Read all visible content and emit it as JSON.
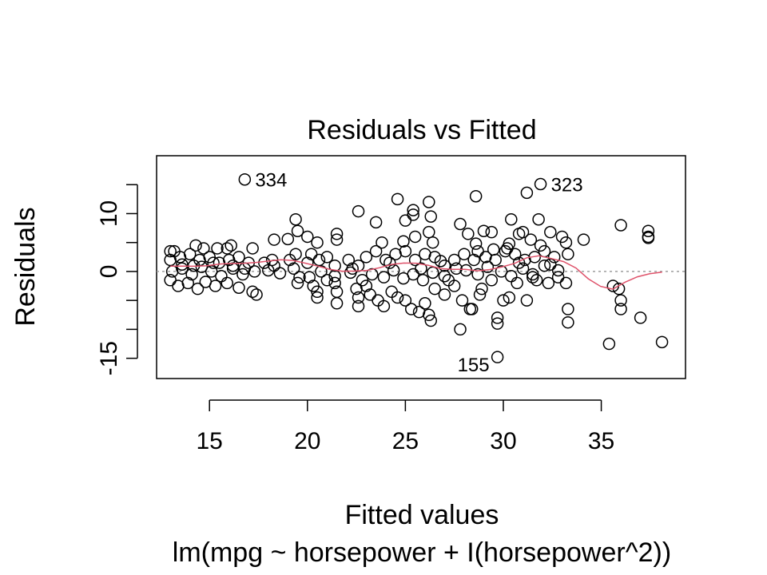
{
  "chart_data": {
    "type": "scatter",
    "title": "Residuals vs Fitted",
    "xlabel": "Fitted values",
    "sublabel": "lm(mpg ~ horsepower + I(horsepower^2))",
    "ylabel": "Residuals",
    "xlim": [
      12.3,
      39.3
    ],
    "ylim": [
      -18.5,
      20
    ],
    "xticks": [
      15,
      20,
      25,
      30,
      35
    ],
    "yticks": [
      -15,
      -10,
      -5,
      0,
      5,
      10,
      15
    ],
    "ytick_labels": [
      "-15",
      "",
      "",
      "0",
      "",
      "10",
      ""
    ],
    "grid": false,
    "reference_line": {
      "y": 0,
      "style": "dotted",
      "color": "#9e9e9e"
    },
    "smooth_color": "#df536b",
    "labeled_points": [
      {
        "label": "334",
        "x": 16.8,
        "y": 15.9
      },
      {
        "label": "323",
        "x": 31.9,
        "y": 15.1
      },
      {
        "label": "155",
        "x": 29.7,
        "y": -14.8
      }
    ],
    "points": [
      [
        16.8,
        15.9
      ],
      [
        31.9,
        15.1
      ],
      [
        29.7,
        -14.8
      ],
      [
        31.2,
        13.6
      ],
      [
        28.6,
        13.0
      ],
      [
        24.6,
        12.5
      ],
      [
        26.2,
        12.0
      ],
      [
        22.6,
        10.4
      ],
      [
        25.4,
        10.6
      ],
      [
        25.4,
        9.8
      ],
      [
        26.3,
        9.5
      ],
      [
        30.4,
        9.0
      ],
      [
        31.8,
        9.0
      ],
      [
        25.0,
        8.8
      ],
      [
        23.5,
        8.5
      ],
      [
        27.8,
        8.2
      ],
      [
        19.4,
        9.0
      ],
      [
        19.5,
        7.0
      ],
      [
        36.0,
        8.0
      ],
      [
        37.4,
        7.0
      ],
      [
        37.4,
        6.0
      ],
      [
        37.4,
        5.8
      ],
      [
        28.2,
        6.5
      ],
      [
        29.0,
        7.0
      ],
      [
        29.4,
        6.8
      ],
      [
        30.8,
        6.5
      ],
      [
        32.4,
        6.8
      ],
      [
        33.0,
        6.0
      ],
      [
        21.5,
        6.5
      ],
      [
        21.5,
        5.5
      ],
      [
        18.3,
        5.5
      ],
      [
        19.0,
        5.6
      ],
      [
        20.0,
        6.0
      ],
      [
        20.5,
        5.0
      ],
      [
        23.8,
        5.0
      ],
      [
        24.9,
        5.2
      ],
      [
        26.4,
        5.0
      ],
      [
        28.6,
        4.8
      ],
      [
        30.3,
        4.8
      ],
      [
        31.9,
        4.5
      ],
      [
        34.1,
        5.5
      ],
      [
        33.2,
        5.0
      ],
      [
        13.0,
        3.5
      ],
      [
        13.2,
        3.5
      ],
      [
        14.3,
        4.5
      ],
      [
        14.7,
        4.0
      ],
      [
        15.4,
        4.0
      ],
      [
        15.9,
        4.0
      ],
      [
        16.1,
        4.5
      ],
      [
        17.2,
        4.0
      ],
      [
        13.0,
        2.0
      ],
      [
        13.5,
        2.5
      ],
      [
        14.0,
        3.0
      ],
      [
        14.5,
        2.0
      ],
      [
        15.0,
        2.5
      ],
      [
        15.5,
        1.5
      ],
      [
        16.0,
        2.0
      ],
      [
        16.5,
        2.5
      ],
      [
        17.0,
        1.5
      ],
      [
        17.8,
        1.5
      ],
      [
        18.3,
        1.0
      ],
      [
        19.1,
        2.0
      ],
      [
        20.0,
        1.5
      ],
      [
        20.6,
        2.0
      ],
      [
        21.0,
        2.5
      ],
      [
        21.4,
        1.0
      ],
      [
        22.1,
        2.0
      ],
      [
        22.6,
        1.0
      ],
      [
        23.0,
        2.5
      ],
      [
        23.5,
        3.5
      ],
      [
        24.0,
        2.0
      ],
      [
        24.5,
        3.0
      ],
      [
        25.0,
        3.5
      ],
      [
        25.5,
        2.0
      ],
      [
        26.0,
        3.0
      ],
      [
        26.5,
        2.5
      ],
      [
        27.0,
        1.0
      ],
      [
        27.5,
        2.0
      ],
      [
        28.0,
        3.0
      ],
      [
        28.7,
        3.5
      ],
      [
        29.1,
        2.5
      ],
      [
        29.6,
        2.0
      ],
      [
        30.1,
        3.5
      ],
      [
        30.6,
        3.0
      ],
      [
        31.1,
        2.0
      ],
      [
        31.6,
        2.5
      ],
      [
        32.1,
        3.5
      ],
      [
        32.6,
        2.5
      ],
      [
        33.3,
        3.0
      ],
      [
        13.1,
        0.0
      ],
      [
        13.6,
        0.5
      ],
      [
        14.1,
        -0.5
      ],
      [
        14.6,
        0.8
      ],
      [
        15.1,
        0.0
      ],
      [
        15.6,
        -0.8
      ],
      [
        16.2,
        0.5
      ],
      [
        16.7,
        -0.5
      ],
      [
        17.3,
        0.0
      ],
      [
        18.0,
        0.2
      ],
      [
        18.6,
        -0.3
      ],
      [
        19.3,
        0.5
      ],
      [
        20.1,
        -1.0
      ],
      [
        20.7,
        0.0
      ],
      [
        21.4,
        -0.8
      ],
      [
        22.2,
        -0.2
      ],
      [
        22.8,
        -1.5
      ],
      [
        23.3,
        -0.5
      ],
      [
        23.9,
        -1.0
      ],
      [
        24.4,
        0.2
      ],
      [
        24.9,
        -1.2
      ],
      [
        25.4,
        -0.5
      ],
      [
        25.9,
        -1.5
      ],
      [
        26.4,
        -0.2
      ],
      [
        27.0,
        -0.8
      ],
      [
        27.6,
        0.5
      ],
      [
        28.1,
        0.2
      ],
      [
        28.7,
        -0.5
      ],
      [
        29.2,
        0.8
      ],
      [
        29.9,
        0.0
      ],
      [
        30.4,
        -0.8
      ],
      [
        31.0,
        0.5
      ],
      [
        31.5,
        -0.5
      ],
      [
        32.1,
        1.0
      ],
      [
        32.8,
        0.2
      ],
      [
        13.0,
        -1.5
      ],
      [
        13.4,
        -2.5
      ],
      [
        13.9,
        -2.0
      ],
      [
        14.4,
        -3.0
      ],
      [
        14.8,
        -1.8
      ],
      [
        15.3,
        -2.5
      ],
      [
        15.9,
        -2.0
      ],
      [
        16.5,
        -2.8
      ],
      [
        17.2,
        -3.5
      ],
      [
        17.4,
        -4.0
      ],
      [
        19.5,
        -2.0
      ],
      [
        20.3,
        -2.5
      ],
      [
        20.5,
        -3.5
      ],
      [
        20.5,
        -4.5
      ],
      [
        21.4,
        -2.0
      ],
      [
        21.5,
        -3.5
      ],
      [
        21.5,
        -5.5
      ],
      [
        22.5,
        -3.0
      ],
      [
        22.6,
        -4.5
      ],
      [
        22.6,
        -6.0
      ],
      [
        23.0,
        -2.5
      ],
      [
        23.2,
        -4.0
      ],
      [
        23.6,
        -5.0
      ],
      [
        23.9,
        -6.0
      ],
      [
        24.3,
        -3.5
      ],
      [
        24.6,
        -4.5
      ],
      [
        25.0,
        -5.0
      ],
      [
        25.3,
        -6.5
      ],
      [
        25.7,
        -7.0
      ],
      [
        26.0,
        -5.5
      ],
      [
        26.2,
        -7.5
      ],
      [
        26.3,
        -8.5
      ],
      [
        26.5,
        -3.0
      ],
      [
        27.0,
        -4.0
      ],
      [
        27.5,
        -2.5
      ],
      [
        27.9,
        -5.0
      ],
      [
        28.3,
        -6.5
      ],
      [
        28.8,
        -4.0
      ],
      [
        28.9,
        -3.0
      ],
      [
        29.4,
        -1.5
      ],
      [
        29.7,
        -8.0
      ],
      [
        29.7,
        -9.0
      ],
      [
        30.0,
        -5.0
      ],
      [
        30.3,
        -4.5
      ],
      [
        30.7,
        -2.0
      ],
      [
        31.2,
        -5.0
      ],
      [
        31.5,
        -1.0
      ],
      [
        32.3,
        -2.0
      ],
      [
        32.8,
        -1.0
      ],
      [
        33.3,
        -6.5
      ],
      [
        33.3,
        -8.8
      ],
      [
        33.2,
        -2.0
      ],
      [
        35.6,
        -2.5
      ],
      [
        35.9,
        -3.0
      ],
      [
        36.0,
        -5.0
      ],
      [
        36.0,
        -6.5
      ],
      [
        35.4,
        -12.5
      ],
      [
        37.0,
        -8.0
      ],
      [
        38.1,
        -12.2
      ],
      [
        27.8,
        -10.0
      ],
      [
        28.4,
        -6.5
      ],
      [
        31.4,
        5.5
      ],
      [
        31.0,
        6.8
      ],
      [
        30.2,
        4.0
      ],
      [
        26.2,
        6.8
      ],
      [
        25.5,
        6.0
      ],
      [
        24.2,
        1.5
      ],
      [
        25.8,
        0.5
      ],
      [
        26.8,
        1.8
      ],
      [
        27.2,
        -1.5
      ],
      [
        22.3,
        0.5
      ],
      [
        21.0,
        -1.5
      ],
      [
        20.2,
        3.0
      ],
      [
        19.4,
        3.0
      ],
      [
        19.6,
        -1.0
      ],
      [
        18.2,
        2.0
      ],
      [
        16.2,
        1.0
      ],
      [
        16.8,
        0.5
      ],
      [
        15.2,
        1.5
      ],
      [
        14.2,
        1.0
      ],
      [
        13.6,
        1.2
      ],
      [
        30.8,
        1.5
      ],
      [
        32.4,
        1.2
      ],
      [
        31.7,
        -1.5
      ],
      [
        29.5,
        3.8
      ],
      [
        28.5,
        2.0
      ]
    ]
  }
}
